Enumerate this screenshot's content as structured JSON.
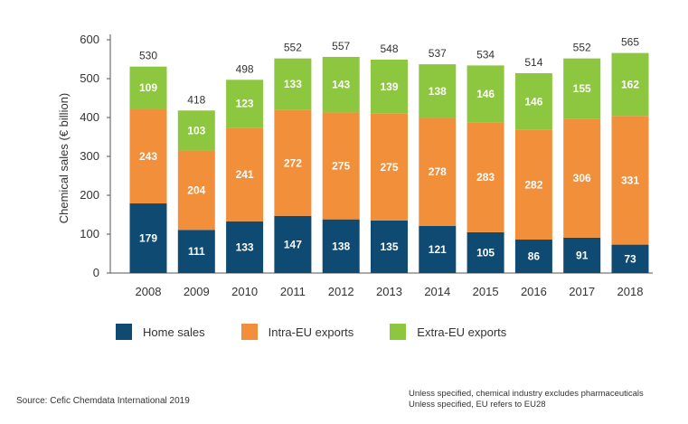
{
  "chart_data": {
    "type": "bar",
    "stacked": true,
    "categories": [
      "2008",
      "2009",
      "2010",
      "2011",
      "2012",
      "2013",
      "2014",
      "2015",
      "2016",
      "2017",
      "2018"
    ],
    "series": [
      {
        "name": "Home sales",
        "color": "#0f4a73",
        "values": [
          179,
          111,
          133,
          147,
          138,
          135,
          121,
          105,
          86,
          91,
          73
        ]
      },
      {
        "name": "Intra-EU exports",
        "color": "#f28f3b",
        "values": [
          243,
          204,
          241,
          272,
          275,
          275,
          278,
          283,
          282,
          306,
          331
        ]
      },
      {
        "name": "Extra-EU exports",
        "color": "#8dc63f",
        "values": [
          109,
          103,
          123,
          133,
          143,
          139,
          138,
          146,
          146,
          155,
          162
        ]
      }
    ],
    "totals": [
      530,
      418,
      498,
      552,
      557,
      548,
      537,
      534,
      514,
      552,
      565
    ],
    "ylabel": "Chemical sales (€ billion)",
    "ylim": [
      0,
      600
    ],
    "yticks": [
      0,
      100,
      200,
      300,
      400,
      500,
      600
    ],
    "legend_position": "bottom"
  },
  "legend": [
    {
      "label": "Home sales",
      "color": "#0f4a73"
    },
    {
      "label": "Intra-EU exports",
      "color": "#f28f3b"
    },
    {
      "label": "Extra-EU exports",
      "color": "#8dc63f"
    }
  ],
  "source": "Source: Cefic Chemdata International 2019",
  "notes": [
    "Unless specified, chemical industry excludes pharmaceuticals",
    "Unless specified, EU refers to EU28"
  ]
}
